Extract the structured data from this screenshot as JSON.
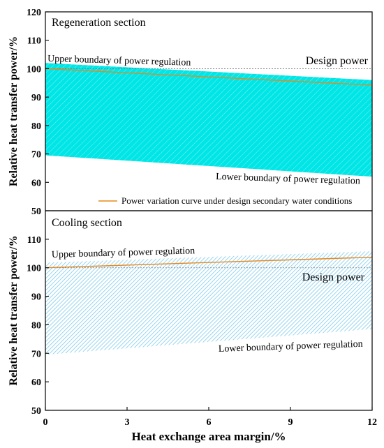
{
  "chart_data": [
    {
      "type": "area",
      "title": "Regeneration section",
      "ylabel": "Relative heat transfer power/%",
      "xlim": [
        0,
        12
      ],
      "ylim": [
        50,
        120
      ],
      "yticks": [
        50,
        60,
        70,
        80,
        90,
        100,
        110,
        120
      ],
      "band": {
        "x": [
          0,
          12
        ],
        "upper": [
          102,
          96
        ],
        "lower": [
          69.5,
          62
        ],
        "color": "#00e5e5",
        "hatch": "diagonal"
      },
      "series": [
        {
          "name": "Power variation curve under design secondary water conditions",
          "x": [
            0,
            12
          ],
          "y": [
            100,
            94.2
          ],
          "color": "#e8891c"
        }
      ],
      "reference": {
        "y": 100,
        "label": "Design power"
      },
      "annotations": {
        "upper": "Upper boundary of power regulation",
        "lower": "Lower boundary of power regulation"
      },
      "legend": "bottom-right"
    },
    {
      "type": "area",
      "title": "Cooling section",
      "ylabel": "Relative heat transfer power/%",
      "xlabel": "Heat exchange area margin/%",
      "xlim": [
        0,
        12
      ],
      "ylim": [
        50,
        120
      ],
      "xticks": [
        0,
        3,
        6,
        9,
        12
      ],
      "yticks": [
        50,
        60,
        70,
        80,
        90,
        100,
        110
      ],
      "band": {
        "x": [
          0,
          12
        ],
        "upper": [
          101.8,
          105.8
        ],
        "lower": [
          69.5,
          78.5
        ],
        "color": "#87cfee",
        "hatch": "diagonal"
      },
      "series": [
        {
          "name": "Power variation curve under design secondary water conditions",
          "x": [
            0,
            12
          ],
          "y": [
            100,
            103.7
          ],
          "color": "#e8891c"
        }
      ],
      "reference": {
        "y": 100,
        "label": "Design power"
      },
      "annotations": {
        "upper": "Upper boundary of power regulation",
        "lower": "Lower boundary of power regulation"
      }
    }
  ]
}
